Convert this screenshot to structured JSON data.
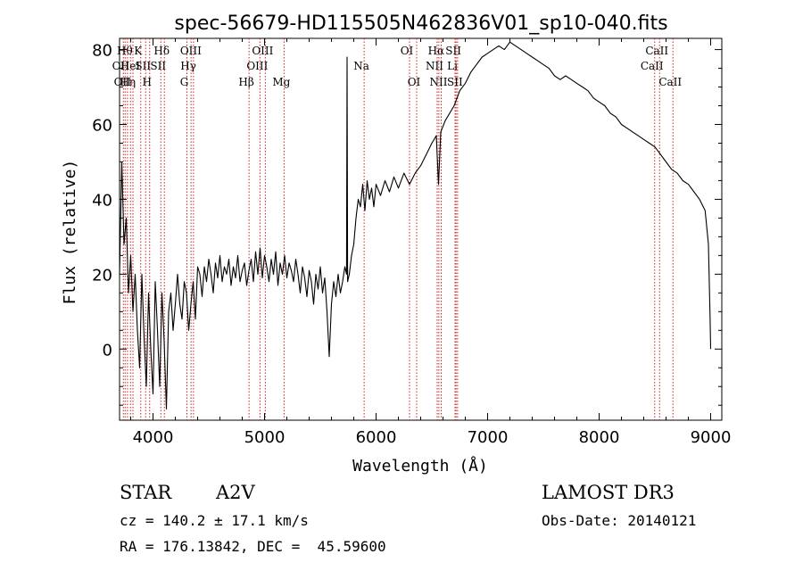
{
  "chart_data": {
    "type": "line",
    "title": "spec-56679-HD115505N462836V01_sp10-040.fits",
    "xlabel": "Wavelength (Å)",
    "ylabel": "Flux (relative)",
    "xlim": [
      3700,
      9100
    ],
    "ylim": [
      -19,
      83
    ],
    "xticks": [
      4000,
      5000,
      6000,
      7000,
      8000,
      9000
    ],
    "yticks": [
      0,
      20,
      40,
      60,
      80
    ],
    "line_color": "#000000",
    "marker_color": "#cc2222",
    "series": [
      {
        "name": "flux",
        "points": [
          [
            3700,
            20
          ],
          [
            3720,
            50
          ],
          [
            3740,
            28
          ],
          [
            3760,
            35
          ],
          [
            3780,
            15
          ],
          [
            3800,
            25
          ],
          [
            3820,
            10
          ],
          [
            3840,
            20
          ],
          [
            3860,
            5
          ],
          [
            3880,
            -5
          ],
          [
            3900,
            20
          ],
          [
            3920,
            3
          ],
          [
            3940,
            -10
          ],
          [
            3960,
            15
          ],
          [
            3980,
            0
          ],
          [
            4000,
            -12
          ],
          [
            4020,
            18
          ],
          [
            4040,
            5
          ],
          [
            4060,
            -10
          ],
          [
            4080,
            15
          ],
          [
            4100,
            2
          ],
          [
            4120,
            -16
          ],
          [
            4140,
            10
          ],
          [
            4160,
            15
          ],
          [
            4180,
            5
          ],
          [
            4200,
            12
          ],
          [
            4220,
            20
          ],
          [
            4240,
            12
          ],
          [
            4260,
            8
          ],
          [
            4280,
            18
          ],
          [
            4300,
            15
          ],
          [
            4320,
            5
          ],
          [
            4340,
            12
          ],
          [
            4360,
            18
          ],
          [
            4380,
            8
          ],
          [
            4400,
            22
          ],
          [
            4420,
            20
          ],
          [
            4440,
            14
          ],
          [
            4460,
            22
          ],
          [
            4480,
            18
          ],
          [
            4500,
            24
          ],
          [
            4520,
            20
          ],
          [
            4540,
            15
          ],
          [
            4560,
            23
          ],
          [
            4580,
            19
          ],
          [
            4600,
            25
          ],
          [
            4620,
            18
          ],
          [
            4640,
            22
          ],
          [
            4660,
            20
          ],
          [
            4680,
            24
          ],
          [
            4700,
            17
          ],
          [
            4720,
            22
          ],
          [
            4740,
            19
          ],
          [
            4760,
            25
          ],
          [
            4780,
            18
          ],
          [
            4800,
            21
          ],
          [
            4820,
            23
          ],
          [
            4840,
            17
          ],
          [
            4860,
            21
          ],
          [
            4880,
            24
          ],
          [
            4900,
            18
          ],
          [
            4920,
            26
          ],
          [
            4940,
            20
          ],
          [
            4960,
            27
          ],
          [
            4980,
            19
          ],
          [
            5000,
            25
          ],
          [
            5020,
            22
          ],
          [
            5040,
            18
          ],
          [
            5060,
            24
          ],
          [
            5080,
            20
          ],
          [
            5100,
            26
          ],
          [
            5120,
            17
          ],
          [
            5140,
            23
          ],
          [
            5160,
            20
          ],
          [
            5180,
            25
          ],
          [
            5200,
            19
          ],
          [
            5220,
            23
          ],
          [
            5240,
            21
          ],
          [
            5260,
            18
          ],
          [
            5280,
            24
          ],
          [
            5300,
            20
          ],
          [
            5320,
            15
          ],
          [
            5340,
            22
          ],
          [
            5360,
            19
          ],
          [
            5380,
            14
          ],
          [
            5400,
            21
          ],
          [
            5420,
            18
          ],
          [
            5440,
            12
          ],
          [
            5460,
            20
          ],
          [
            5480,
            16
          ],
          [
            5500,
            22
          ],
          [
            5520,
            15
          ],
          [
            5540,
            19
          ],
          [
            5560,
            10
          ],
          [
            5580,
            -2
          ],
          [
            5600,
            12
          ],
          [
            5620,
            18
          ],
          [
            5640,
            14
          ],
          [
            5660,
            20
          ],
          [
            5680,
            15
          ],
          [
            5700,
            18
          ],
          [
            5720,
            22
          ],
          [
            5735,
            20
          ],
          [
            5740,
            78
          ],
          [
            5745,
            18
          ],
          [
            5760,
            20
          ],
          [
            5780,
            25
          ],
          [
            5800,
            28
          ],
          [
            5820,
            35
          ],
          [
            5840,
            40
          ],
          [
            5860,
            38
          ],
          [
            5880,
            44
          ],
          [
            5900,
            37
          ],
          [
            5920,
            45
          ],
          [
            5940,
            40
          ],
          [
            5960,
            43
          ],
          [
            5980,
            38
          ],
          [
            6000,
            44
          ],
          [
            6040,
            41
          ],
          [
            6080,
            45
          ],
          [
            6120,
            42
          ],
          [
            6160,
            46
          ],
          [
            6200,
            43
          ],
          [
            6250,
            47
          ],
          [
            6300,
            44
          ],
          [
            6350,
            47
          ],
          [
            6400,
            49
          ],
          [
            6450,
            52
          ],
          [
            6500,
            55
          ],
          [
            6540,
            57
          ],
          [
            6560,
            44
          ],
          [
            6580,
            58
          ],
          [
            6620,
            61
          ],
          [
            6660,
            63
          ],
          [
            6700,
            65
          ],
          [
            6750,
            69
          ],
          [
            6800,
            71
          ],
          [
            6850,
            74
          ],
          [
            6900,
            76
          ],
          [
            6950,
            78
          ],
          [
            7000,
            79
          ],
          [
            7050,
            80
          ],
          [
            7100,
            81
          ],
          [
            7150,
            80
          ],
          [
            7200,
            82
          ],
          [
            7250,
            81
          ],
          [
            7300,
            80
          ],
          [
            7350,
            79
          ],
          [
            7400,
            78
          ],
          [
            7450,
            77
          ],
          [
            7500,
            76
          ],
          [
            7550,
            75
          ],
          [
            7600,
            73
          ],
          [
            7650,
            72
          ],
          [
            7700,
            73
          ],
          [
            7750,
            72
          ],
          [
            7800,
            71
          ],
          [
            7850,
            70
          ],
          [
            7900,
            69
          ],
          [
            7950,
            67
          ],
          [
            8000,
            66
          ],
          [
            8050,
            65
          ],
          [
            8100,
            63
          ],
          [
            8150,
            62
          ],
          [
            8200,
            60
          ],
          [
            8250,
            59
          ],
          [
            8300,
            58
          ],
          [
            8350,
            57
          ],
          [
            8400,
            56
          ],
          [
            8450,
            55
          ],
          [
            8500,
            54
          ],
          [
            8550,
            52
          ],
          [
            8600,
            50
          ],
          [
            8650,
            48
          ],
          [
            8700,
            47
          ],
          [
            8750,
            45
          ],
          [
            8800,
            44
          ],
          [
            8850,
            42
          ],
          [
            8900,
            40
          ],
          [
            8950,
            37
          ],
          [
            8980,
            28
          ],
          [
            8995,
            8
          ],
          [
            9000,
            0
          ]
        ]
      }
    ],
    "line_markers": [
      {
        "wavelength": 3734,
        "label": "OII",
        "row": 2
      },
      {
        "wavelength": 3750,
        "label": "OII",
        "row": 3
      },
      {
        "wavelength": 3771,
        "label": "Hθ",
        "row": 1
      },
      {
        "wavelength": 3798,
        "label": "Hη",
        "row": 3
      },
      {
        "wavelength": 3820,
        "label": "HeI",
        "row": 2
      },
      {
        "wavelength": 3890,
        "label": "K",
        "row": 1
      },
      {
        "wavelength": 3934,
        "label": "SII",
        "row": 2
      },
      {
        "wavelength": 3970,
        "label": "H",
        "row": 3
      },
      {
        "wavelength": 4102,
        "label": "Hδ",
        "row": 1
      },
      {
        "wavelength": 4070,
        "label": "SII",
        "row": 2
      },
      {
        "wavelength": 4304,
        "label": "G",
        "row": 3
      },
      {
        "wavelength": 4341,
        "label": "Hγ",
        "row": 2
      },
      {
        "wavelength": 4363,
        "label": "OIII",
        "row": 1
      },
      {
        "wavelength": 4861,
        "label": "Hβ",
        "row": 3
      },
      {
        "wavelength": 4959,
        "label": "OIII",
        "row": 2
      },
      {
        "wavelength": 5007,
        "label": "OIII",
        "row": 1
      },
      {
        "wavelength": 5175,
        "label": "Mg",
        "row": 3
      },
      {
        "wavelength": 5893,
        "label": "Na",
        "row": 2
      },
      {
        "wavelength": 6300,
        "label": "OI",
        "row": 1
      },
      {
        "wavelength": 6364,
        "label": "OI",
        "row": 3
      },
      {
        "wavelength": 6548,
        "label": "NII",
        "row": 2
      },
      {
        "wavelength": 6563,
        "label": "Hα",
        "row": 1
      },
      {
        "wavelength": 6584,
        "label": "NII",
        "row": 3
      },
      {
        "wavelength": 6708,
        "label": "Li",
        "row": 2
      },
      {
        "wavelength": 6717,
        "label": "SII",
        "row": 1
      },
      {
        "wavelength": 6731,
        "label": "SII",
        "row": 3
      },
      {
        "wavelength": 8498,
        "label": "CaII",
        "row": 2
      },
      {
        "wavelength": 8542,
        "label": "CaII",
        "row": 1
      },
      {
        "wavelength": 8662,
        "label": "CaII",
        "row": 3
      }
    ]
  },
  "info": {
    "class": "STAR",
    "subclass": "A2V",
    "survey": "LAMOST DR3",
    "cz": "cz = 140.2 ± 17.1 km/s",
    "obs_date": "Obs-Date: 20140121",
    "coords": "RA = 176.13842, DEC =  45.59600"
  }
}
